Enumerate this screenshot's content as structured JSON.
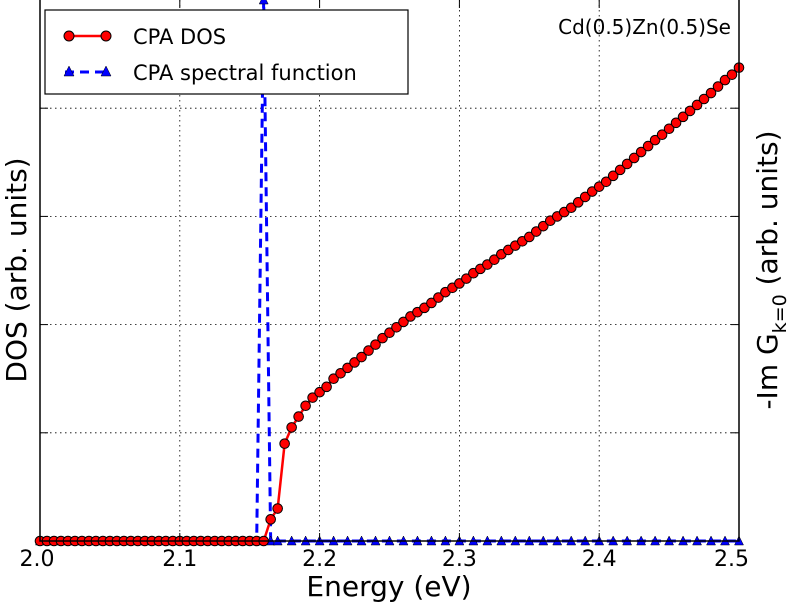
{
  "chart_data": {
    "type": "line",
    "title": "",
    "xlabel": "Energy (eV)",
    "ylabel": "DOS (arb. units)",
    "ylabel_right_prefix": "-Im G",
    "ylabel_right_sub": "k=0",
    "ylabel_right_suffix": " (arb. units)",
    "xlim": [
      2.0,
      2.5
    ],
    "ylim": [
      0,
      1.0
    ],
    "grid": true,
    "legend_position": "top-left",
    "annotation": "Cd(0.5)Zn(0.5)Se",
    "xticks": [
      "2.0",
      "2.1",
      "2.2",
      "2.3",
      "2.4",
      "2.5"
    ],
    "xtick_values": [
      2.0,
      2.1,
      2.2,
      2.3,
      2.4,
      2.5
    ],
    "ytick_values": [
      0.2,
      0.4,
      0.6,
      0.8
    ],
    "series": [
      {
        "name": "CPA DOS",
        "color": "#ff0000",
        "marker_fill": "#ff0000",
        "marker": "circle",
        "linestyle": "solid",
        "axis": "left",
        "x_start": 2.0,
        "x_step": 0.005,
        "values": [
          0,
          0,
          0,
          0,
          0,
          0,
          0,
          0,
          0,
          0,
          0,
          0,
          0,
          0,
          0,
          0,
          0,
          0,
          0,
          0,
          0,
          0,
          0,
          0,
          0,
          0,
          0,
          0,
          0,
          0,
          0,
          0,
          0,
          0.04,
          0.06,
          0.18,
          0.21,
          0.23,
          0.25,
          0.265,
          0.275,
          0.285,
          0.3,
          0.31,
          0.32,
          0.33,
          0.34,
          0.352,
          0.363,
          0.375,
          0.385,
          0.395,
          0.405,
          0.415,
          0.423,
          0.431,
          0.44,
          0.45,
          0.46,
          0.468,
          0.476,
          0.485,
          0.495,
          0.503,
          0.511,
          0.52,
          0.53,
          0.538,
          0.546,
          0.554,
          0.562,
          0.572,
          0.582,
          0.592,
          0.6,
          0.608,
          0.616,
          0.626,
          0.636,
          0.646,
          0.655,
          0.664,
          0.675,
          0.686,
          0.697,
          0.708,
          0.719,
          0.73,
          0.741,
          0.751,
          0.762,
          0.773,
          0.784,
          0.795,
          0.806,
          0.817,
          0.828,
          0.84,
          0.852,
          0.862,
          0.875
        ]
      },
      {
        "name": "CPA spectral function",
        "color": "#0000ff",
        "marker_fill": "#0000ff",
        "marker": "triangle",
        "linestyle": "dashed",
        "axis": "right",
        "x": [
          2.0,
          2.01,
          2.02,
          2.03,
          2.04,
          2.05,
          2.06,
          2.07,
          2.08,
          2.09,
          2.1,
          2.11,
          2.12,
          2.13,
          2.14,
          2.15,
          2.155,
          2.16,
          2.165,
          2.17,
          2.18,
          2.19,
          2.2,
          2.21,
          2.22,
          2.23,
          2.24,
          2.25,
          2.26,
          2.27,
          2.28,
          2.29,
          2.3,
          2.31,
          2.32,
          2.33,
          2.34,
          2.35,
          2.36,
          2.37,
          2.38,
          2.39,
          2.4,
          2.41,
          2.42,
          2.43,
          2.44,
          2.45,
          2.46,
          2.47,
          2.48,
          2.49,
          2.5
        ],
        "values": [
          0,
          0,
          0,
          0,
          0,
          0,
          0,
          0,
          0,
          0,
          0,
          0,
          0,
          0,
          0,
          0,
          0,
          1.0,
          0,
          0,
          0,
          0,
          0,
          0,
          0,
          0,
          0,
          0,
          0,
          0,
          0,
          0,
          0,
          0,
          0,
          0,
          0,
          0,
          0,
          0,
          0,
          0,
          0,
          0,
          0,
          0,
          0,
          0,
          0,
          0,
          0,
          0,
          0
        ]
      }
    ]
  }
}
